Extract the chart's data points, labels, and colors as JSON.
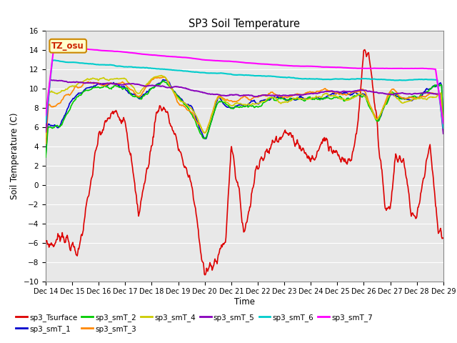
{
  "title": "SP3 Soil Temperature",
  "xlabel": "Time",
  "ylabel": "Soil Temperature (C)",
  "ylim": [
    -10,
    16
  ],
  "yticks": [
    -10,
    -8,
    -6,
    -4,
    -2,
    0,
    2,
    4,
    6,
    8,
    10,
    12,
    14,
    16
  ],
  "xtick_labels": [
    "Dec 14",
    "Dec 15",
    "Dec 16",
    "Dec 17",
    "Dec 18",
    "Dec 19",
    "Dec 20",
    "Dec 21",
    "Dec 22",
    "Dec 23",
    "Dec 24",
    "Dec 25",
    "Dec 26",
    "Dec 27",
    "Dec 28",
    "Dec 29"
  ],
  "legend_labels": [
    "sp3_Tsurface",
    "sp3_smT_1",
    "sp3_smT_2",
    "sp3_smT_3",
    "sp3_smT_4",
    "sp3_smT_5",
    "sp3_smT_6",
    "sp3_smT_7"
  ],
  "colors": {
    "sp3_Tsurface": "#dd0000",
    "sp3_smT_1": "#0000cc",
    "sp3_smT_2": "#00cc00",
    "sp3_smT_3": "#ff8800",
    "sp3_smT_4": "#cccc00",
    "sp3_smT_5": "#8800bb",
    "sp3_smT_6": "#00cccc",
    "sp3_smT_7": "#ff00ff"
  },
  "watermark_text": "TZ_osu",
  "watermark_color": "#cc2200",
  "watermark_bg": "#ffffcc",
  "watermark_edge": "#cc8800"
}
